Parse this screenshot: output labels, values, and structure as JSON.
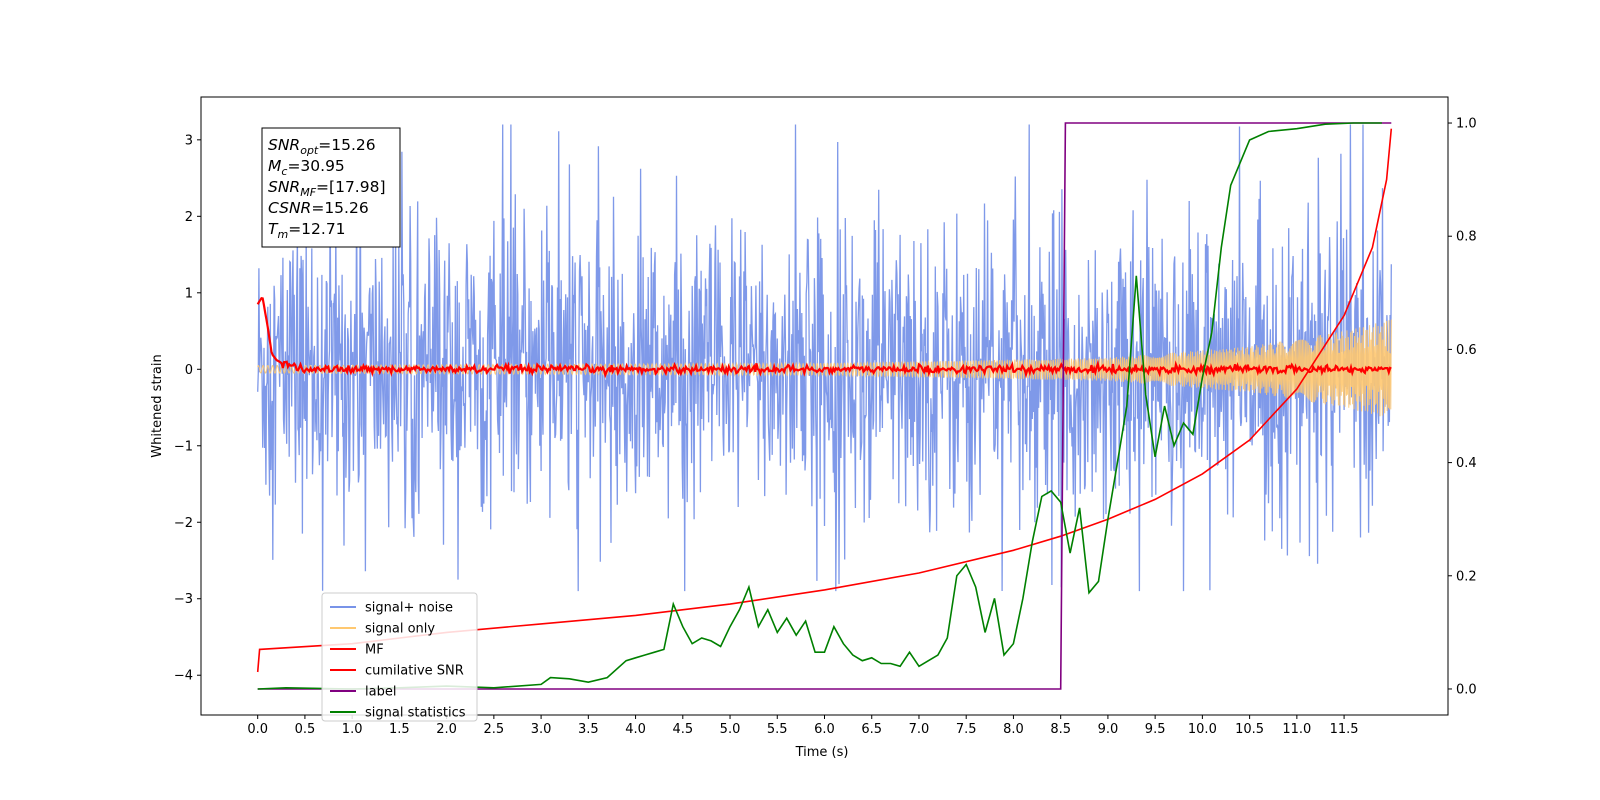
{
  "chart_data": {
    "type": "line",
    "title": "",
    "xlabel": "Time (s)",
    "ylabel": "Whitened strain",
    "y2label": "",
    "xlim": [
      -0.6,
      12.6
    ],
    "ylim": [
      -4.52,
      3.56
    ],
    "y2lim": [
      -0.046,
      1.046
    ],
    "x_ticks": [
      "0.0",
      "0.5",
      "1.0",
      "1.5",
      "2.0",
      "2.5",
      "3.0",
      "3.5",
      "4.0",
      "4.5",
      "5.0",
      "5.5",
      "6.0",
      "6.5",
      "7.0",
      "7.5",
      "8.0",
      "8.5",
      "9.0",
      "9.5",
      "10.0",
      "10.5",
      "11.0",
      "11.5"
    ],
    "y_ticks": [
      "3",
      "2",
      "1",
      "0",
      "−1",
      "−2",
      "−3",
      "−4"
    ],
    "y2_ticks": [
      "1.0",
      "0.8",
      "0.6",
      "0.4",
      "0.2",
      "0.0"
    ],
    "stats_box": {
      "snr_opt": "SNR_opt=15.26",
      "mc": "M_c=30.95",
      "snr_mf": "SNR_MF=[17.98]",
      "csnr": "CSNR=15.26",
      "tm": "T_m=12.71",
      "lines": [
        {
          "main": "SNR",
          "sub": "opt",
          "rest": "=15.26"
        },
        {
          "main": "M",
          "sub": "c",
          "rest": "=30.95"
        },
        {
          "main": "SNR",
          "sub": "MF",
          "rest": "=[17.98]"
        },
        {
          "main": "CSNR",
          "sub": "",
          "rest": "=15.26"
        },
        {
          "main": "T",
          "sub": "m",
          "rest": "=12.71"
        }
      ]
    },
    "legend": {
      "placement": "lower-left",
      "entries": [
        {
          "name": "signal+ noise",
          "color": "#7893e8"
        },
        {
          "name": "signal only",
          "color": "#ffc870"
        },
        {
          "name": "MF",
          "color": "#ff0000"
        },
        {
          "name": "cumilative SNR",
          "color": "#ff0000"
        },
        {
          "name": "label",
          "color": "#800080"
        },
        {
          "name": "signal statistics",
          "color": "#008000"
        }
      ]
    },
    "series": [
      {
        "name": "signal+ noise",
        "axis": "left",
        "color": "#7893e8",
        "description": "whitened noisy strain, band roughly -2.9 to 3.2 around 0, 0 to 12.0 s"
      },
      {
        "name": "signal only",
        "axis": "left",
        "color": "#ffc870",
        "envelope": {
          "x": [
            0,
            6.0,
            9.0,
            10.5,
            11.5,
            12.0
          ],
          "amp": [
            0.05,
            0.08,
            0.15,
            0.3,
            0.5,
            0.65
          ]
        }
      },
      {
        "name": "MF",
        "axis": "left",
        "color": "#ff0000",
        "x": [
          0,
          0.05,
          0.1,
          0.15,
          0.2,
          0.3,
          0.5,
          12.0
        ],
        "y": [
          0.85,
          0.95,
          0.6,
          0.2,
          0.12,
          0.05,
          0.0,
          0.0
        ]
      },
      {
        "name": "cumilative SNR",
        "axis": "right",
        "color": "#ff0000",
        "x": [
          0.0,
          0.02,
          1.0,
          2.0,
          3.0,
          4.0,
          5.0,
          6.0,
          7.0,
          8.0,
          8.5,
          9.0,
          9.5,
          10.0,
          10.5,
          11.0,
          11.5,
          11.8,
          11.95,
          12.0
        ],
        "y": [
          0.03,
          0.07,
          0.08,
          0.1,
          0.115,
          0.13,
          0.15,
          0.175,
          0.205,
          0.245,
          0.27,
          0.3,
          0.335,
          0.38,
          0.44,
          0.53,
          0.66,
          0.78,
          0.9,
          0.99
        ]
      },
      {
        "name": "label",
        "axis": "right",
        "color": "#800080",
        "x": [
          0.0,
          8.5,
          8.55,
          12.0
        ],
        "y": [
          0.0,
          0.0,
          1.0,
          1.0
        ]
      },
      {
        "name": "signal statistics",
        "axis": "right",
        "color": "#008000",
        "x": [
          0.0,
          0.3,
          1.0,
          1.5,
          2.0,
          2.5,
          3.0,
          3.1,
          3.3,
          3.5,
          3.7,
          3.9,
          4.0,
          4.1,
          4.2,
          4.3,
          4.4,
          4.5,
          4.6,
          4.7,
          4.8,
          4.9,
          5.0,
          5.1,
          5.2,
          5.3,
          5.4,
          5.5,
          5.6,
          5.7,
          5.8,
          5.9,
          6.0,
          6.1,
          6.2,
          6.3,
          6.4,
          6.5,
          6.6,
          6.7,
          6.8,
          6.9,
          7.0,
          7.1,
          7.2,
          7.3,
          7.4,
          7.5,
          7.6,
          7.7,
          7.8,
          7.9,
          8.0,
          8.1,
          8.2,
          8.3,
          8.4,
          8.5,
          8.6,
          8.7,
          8.8,
          8.9,
          9.0,
          9.1,
          9.2,
          9.3,
          9.4,
          9.5,
          9.6,
          9.7,
          9.8,
          9.9,
          10.0,
          10.1,
          10.2,
          10.3,
          10.4,
          10.5,
          10.7,
          11.0,
          11.3,
          11.6,
          11.9
        ],
        "y": [
          0.0,
          0.002,
          0.0,
          0.002,
          0.005,
          0.002,
          0.008,
          0.02,
          0.018,
          0.012,
          0.02,
          0.05,
          0.055,
          0.06,
          0.065,
          0.07,
          0.15,
          0.11,
          0.08,
          0.09,
          0.085,
          0.075,
          0.11,
          0.14,
          0.18,
          0.11,
          0.14,
          0.1,
          0.125,
          0.095,
          0.12,
          0.065,
          0.065,
          0.11,
          0.08,
          0.06,
          0.05,
          0.055,
          0.045,
          0.045,
          0.04,
          0.065,
          0.04,
          0.05,
          0.06,
          0.09,
          0.2,
          0.22,
          0.18,
          0.1,
          0.16,
          0.06,
          0.08,
          0.16,
          0.26,
          0.34,
          0.35,
          0.33,
          0.24,
          0.32,
          0.17,
          0.19,
          0.3,
          0.4,
          0.5,
          0.73,
          0.52,
          0.41,
          0.5,
          0.43,
          0.47,
          0.45,
          0.55,
          0.63,
          0.78,
          0.89,
          0.93,
          0.97,
          0.985,
          0.99,
          0.998,
          1.0,
          1.0
        ]
      }
    ]
  }
}
